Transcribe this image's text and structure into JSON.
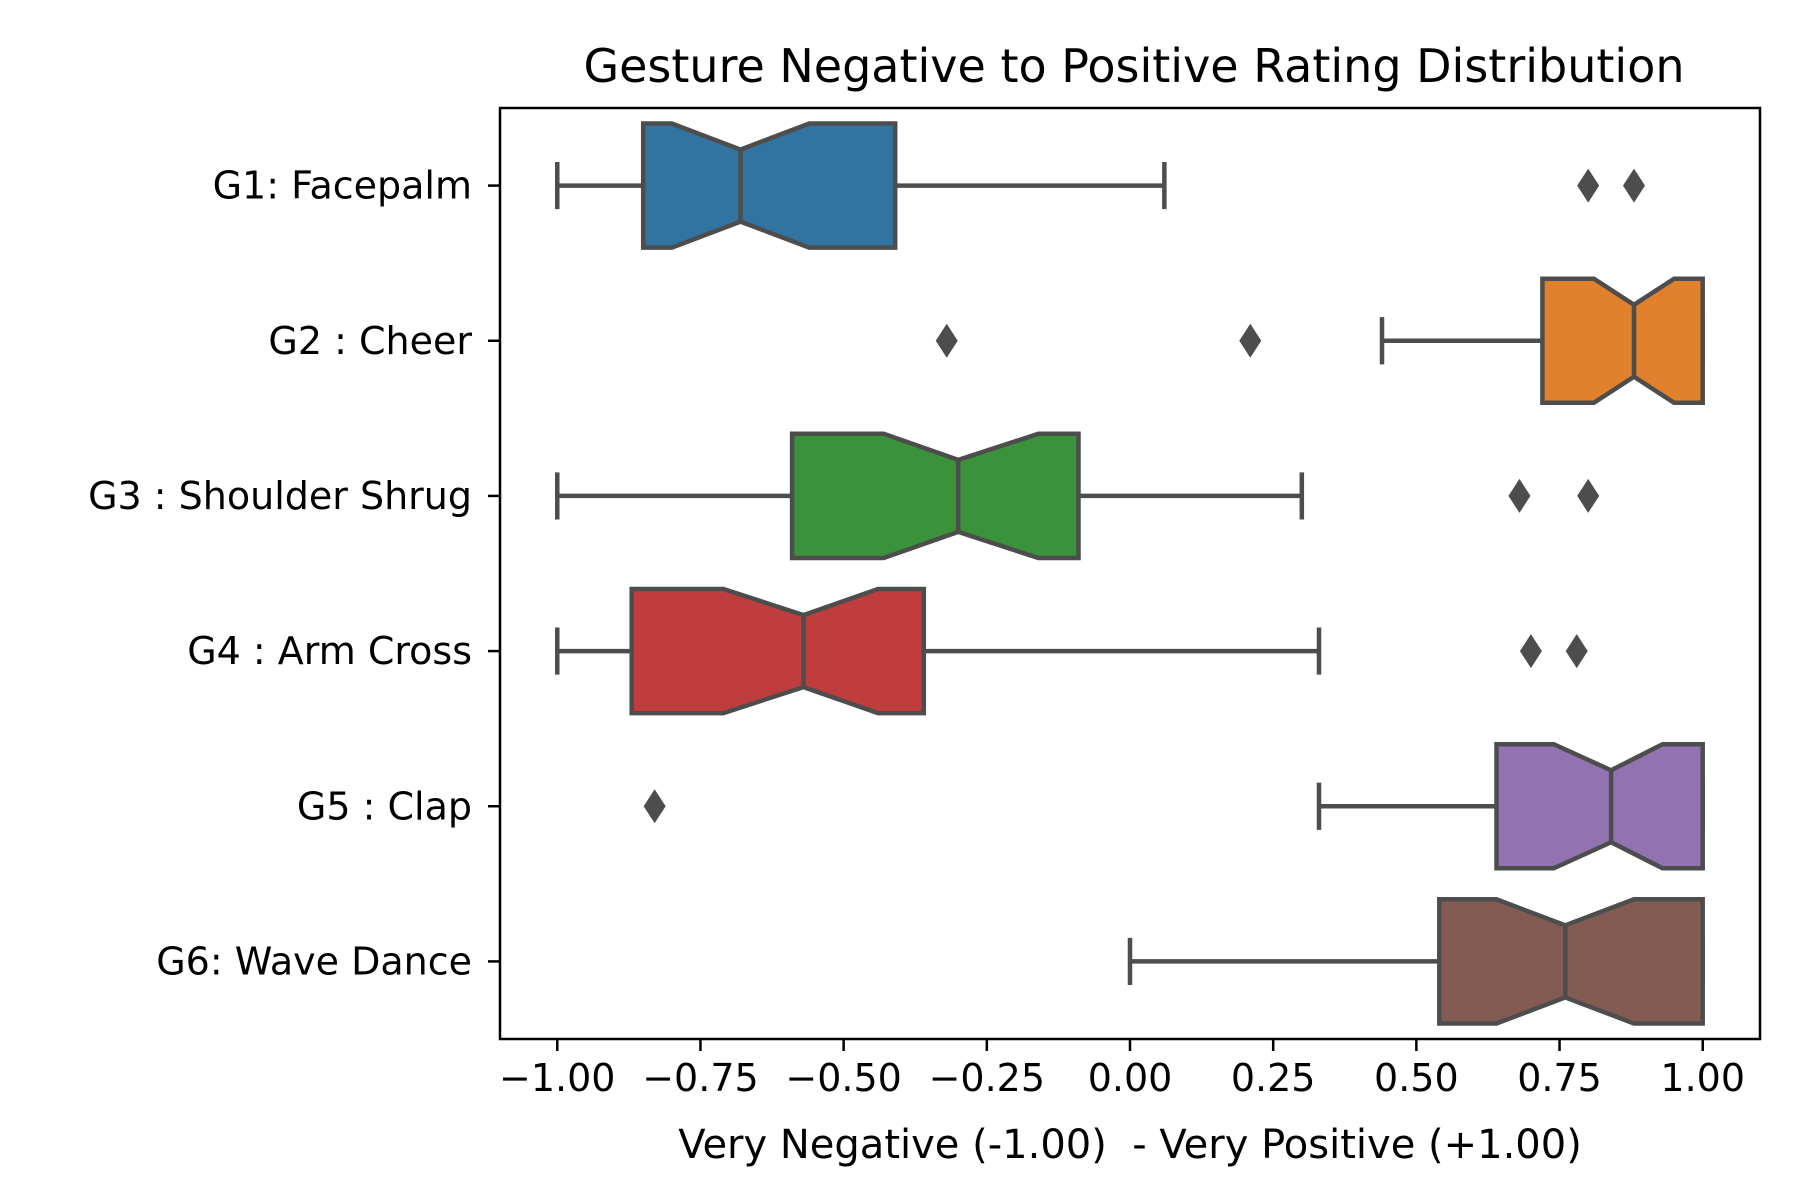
{
  "chart_data": {
    "type": "boxplot",
    "orientation": "horizontal",
    "notched": true,
    "title": "Gesture Negative to Positive Rating Distribution",
    "xlabel": "Very Negative (-1.00)  - Very Positive (+1.00)",
    "ylabel": "",
    "xlim": [
      -1.1,
      1.1
    ],
    "xticks": [
      -1.0,
      -0.75,
      -0.5,
      -0.25,
      0.0,
      0.25,
      0.5,
      0.75,
      1.0
    ],
    "xtick_labels": [
      "−1.00",
      "−0.75",
      "−0.50",
      "−0.25",
      "0.00",
      "0.25",
      "0.50",
      "0.75",
      "1.00"
    ],
    "grid": false,
    "categories": [
      "G1: Facepalm",
      "G2 : Cheer",
      "G3 : Shoulder Shrug",
      "G4 : Arm Cross",
      "G5 : Clap",
      "G6: Wave Dance"
    ],
    "boxes": [
      {
        "color": "#3274a1",
        "whisker_low": -1.0,
        "q1": -0.85,
        "notch_low": -0.8,
        "median": -0.68,
        "notch_high": -0.56,
        "q3": -0.41,
        "whisker_high": 0.06,
        "outliers": [
          0.8,
          0.88
        ]
      },
      {
        "color": "#e1812c",
        "whisker_low": 0.44,
        "q1": 0.72,
        "notch_low": 0.81,
        "median": 0.88,
        "notch_high": 0.95,
        "q3": 1.0,
        "whisker_high": 1.0,
        "outliers": [
          -0.32,
          0.21
        ]
      },
      {
        "color": "#3a923a",
        "whisker_low": -1.0,
        "q1": -0.59,
        "notch_low": -0.43,
        "median": -0.3,
        "notch_high": -0.16,
        "q3": -0.09,
        "whisker_high": 0.3,
        "outliers": [
          0.68,
          0.8
        ]
      },
      {
        "color": "#c03d3e",
        "whisker_low": -1.0,
        "q1": -0.87,
        "notch_low": -0.71,
        "median": -0.57,
        "notch_high": -0.44,
        "q3": -0.36,
        "whisker_high": 0.33,
        "outliers": [
          0.7,
          0.78
        ]
      },
      {
        "color": "#9372b2",
        "whisker_low": 0.33,
        "q1": 0.64,
        "notch_low": 0.74,
        "median": 0.84,
        "notch_high": 0.93,
        "q3": 1.0,
        "whisker_high": 1.0,
        "outliers": [
          -0.83
        ]
      },
      {
        "color": "#845b53",
        "whisker_low": 0.0,
        "q1": 0.54,
        "notch_low": 0.64,
        "median": 0.76,
        "notch_high": 0.88,
        "q3": 1.0,
        "whisker_high": 1.0,
        "outliers": []
      }
    ],
    "line_color": "#4d4d4d"
  }
}
